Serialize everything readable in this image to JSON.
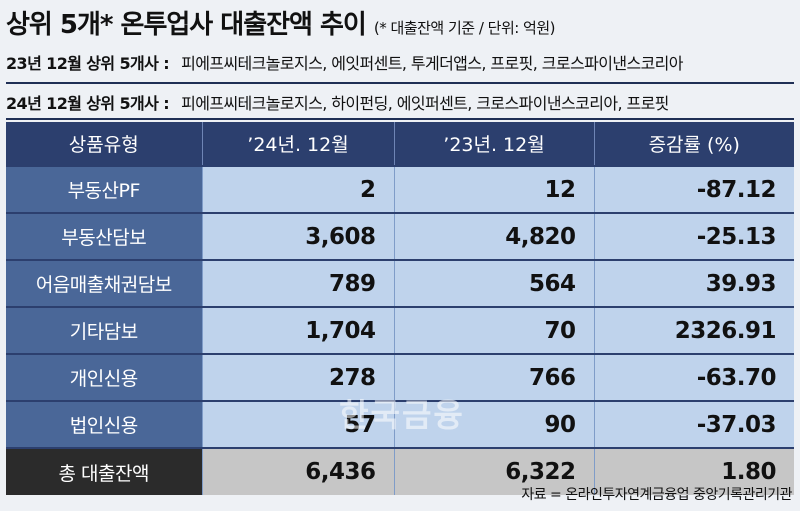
{
  "header": {
    "title": "상위 5개* 온투업사 대출잔액 추이",
    "subtitle": "(* 대출잔액 기준 / 단위: 억원)"
  },
  "info": [
    {
      "label": "23년 12월 상위 5개사 :",
      "value": "피에프씨테크놀로지스, 에잇퍼센트, 투게더앱스, 프로핏, 크로스파이낸스코리아"
    },
    {
      "label": "24년 12월 상위 5개사 :",
      "value": "피에프씨테크놀로지스, 하이펀딩, 에잇퍼센트, 크로스파이낸스코리아, 프로핏"
    }
  ],
  "table": {
    "headers": [
      "상품유형",
      "’24년. 12월",
      "’23년. 12월",
      "증감률 (%)"
    ],
    "rows": [
      [
        "부동산PF",
        "2",
        "12",
        "-87.12"
      ],
      [
        "부동산담보",
        "3,608",
        "4,820",
        "-25.13"
      ],
      [
        "어음매출채권담보",
        "789",
        "564",
        "39.93"
      ],
      [
        "기타담보",
        "1,704",
        "70",
        "2326.91"
      ],
      [
        "개인신용",
        "278",
        "766",
        "-63.70"
      ],
      [
        "법인신용",
        "57",
        "90",
        "-37.03"
      ],
      [
        "총 대출잔액",
        "6,436",
        "6,322",
        "1.80"
      ]
    ]
  },
  "watermark": "한국금융",
  "source": "자료 = 온라인투자연계금융업 중앙기록관리기관"
}
